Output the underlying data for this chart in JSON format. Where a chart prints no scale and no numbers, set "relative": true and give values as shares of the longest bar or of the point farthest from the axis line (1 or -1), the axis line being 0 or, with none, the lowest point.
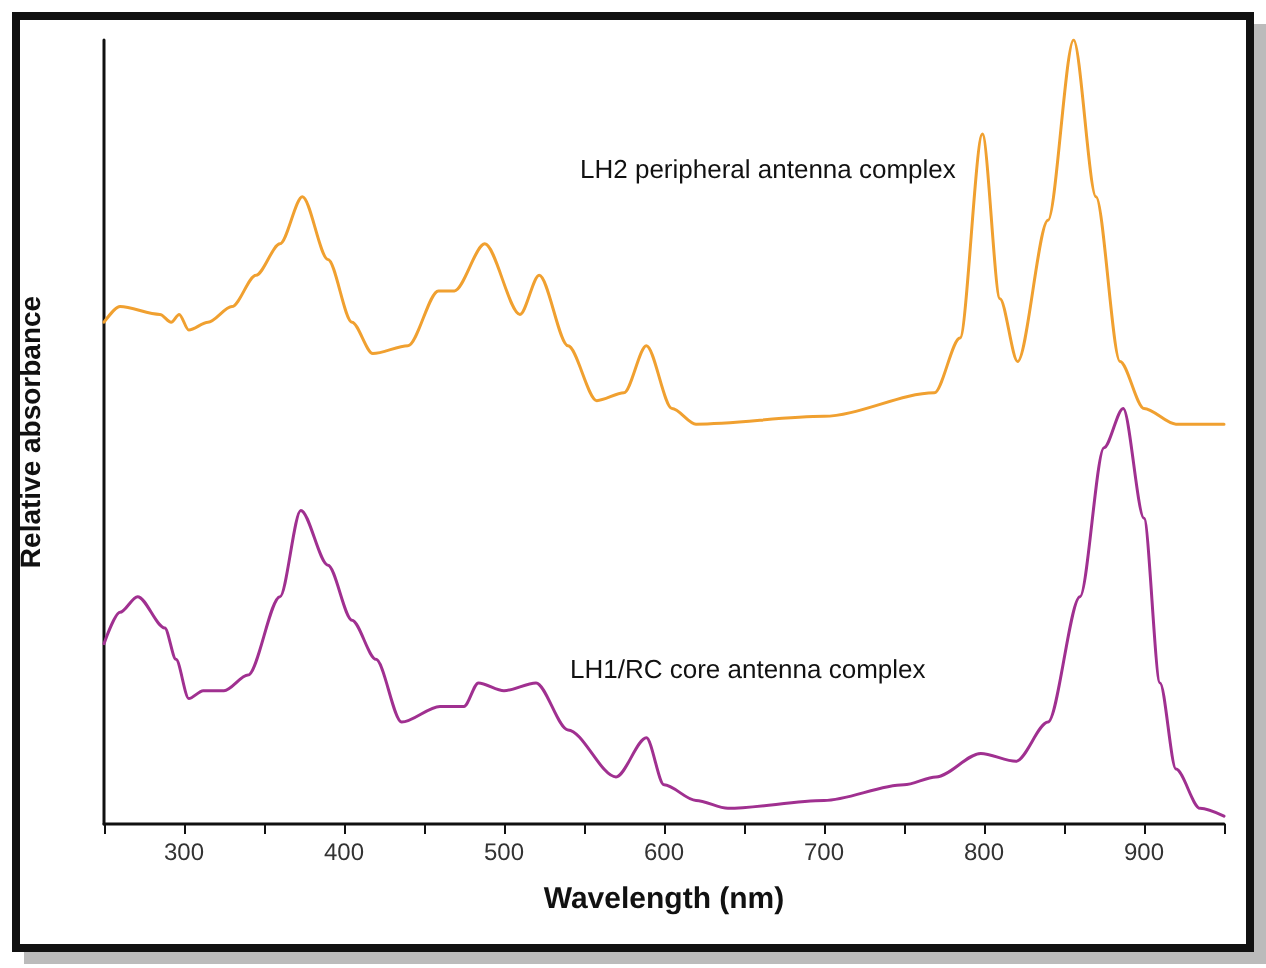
{
  "chart_data": {
    "type": "line",
    "relative": true,
    "xlabel": "Wavelength (nm)",
    "ylabel": "Relative absorbance",
    "xlim": [
      250,
      950
    ],
    "xticks": [
      {
        "value": 250,
        "label": null
      },
      300,
      {
        "value": 350,
        "label": null
      },
      400,
      {
        "value": 450,
        "label": null
      },
      500,
      {
        "value": 550,
        "label": null
      },
      600,
      {
        "value": 650,
        "label": null
      },
      700,
      {
        "value": 750,
        "label": null
      },
      800,
      {
        "value": 850,
        "label": null
      },
      900,
      {
        "value": 950,
        "label": null
      }
    ],
    "tick_labels": "x",
    "grid": false,
    "legend": false,
    "marker": "none",
    "line_style": "solid",
    "series": [
      {
        "name": "LH2 peripheral antenna complex",
        "color": "#f0a030",
        "x": [
          250,
          260,
          285,
          292,
          297,
          303,
          315,
          330,
          345,
          360,
          374,
          390,
          405,
          418,
          440,
          459,
          469,
          488,
          510,
          522,
          540,
          558,
          575,
          589,
          605,
          620,
          700,
          769,
          785,
          799,
          810,
          821,
          840,
          856,
          870,
          885,
          900,
          920,
          950
        ],
        "values": [
          0.64,
          0.66,
          0.65,
          0.64,
          0.65,
          0.63,
          0.64,
          0.66,
          0.7,
          0.74,
          0.8,
          0.72,
          0.64,
          0.6,
          0.61,
          0.68,
          0.68,
          0.74,
          0.65,
          0.7,
          0.61,
          0.54,
          0.55,
          0.61,
          0.53,
          0.51,
          0.52,
          0.55,
          0.62,
          0.88,
          0.67,
          0.59,
          0.77,
          1.0,
          0.8,
          0.59,
          0.53,
          0.51,
          0.51
        ]
      },
      {
        "name": "LH1/RC core antenna complex",
        "color": "#a03090",
        "x": [
          250,
          260,
          271,
          288,
          295,
          303,
          312,
          325,
          340,
          360,
          373,
          390,
          405,
          420,
          436,
          460,
          475,
          484,
          500,
          520,
          540,
          570,
          589,
          600,
          620,
          640,
          700,
          750,
          770,
          798,
          820,
          840,
          860,
          875,
          887,
          900,
          910,
          920,
          935,
          950
        ],
        "values": [
          0.23,
          0.27,
          0.29,
          0.25,
          0.21,
          0.16,
          0.17,
          0.17,
          0.19,
          0.29,
          0.4,
          0.33,
          0.26,
          0.21,
          0.13,
          0.15,
          0.15,
          0.18,
          0.17,
          0.18,
          0.12,
          0.06,
          0.11,
          0.05,
          0.03,
          0.02,
          0.03,
          0.05,
          0.06,
          0.09,
          0.08,
          0.13,
          0.29,
          0.48,
          0.53,
          0.39,
          0.18,
          0.07,
          0.02,
          0.01
        ]
      }
    ]
  }
}
